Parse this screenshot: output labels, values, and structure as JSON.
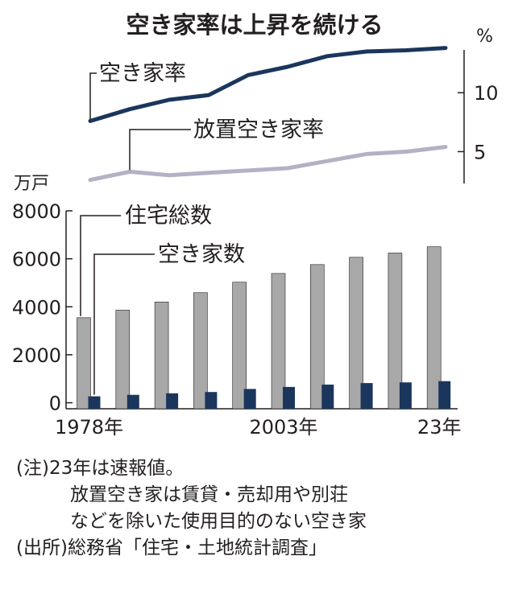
{
  "chart_data": [
    {
      "type": "line",
      "title": "空き家率は上昇を続ける",
      "unit": "%",
      "y_ticks": [
        5,
        10
      ],
      "ylim": [
        2.3,
        15.0
      ],
      "x": [
        1978,
        1983,
        1988,
        1993,
        1998,
        2003,
        2008,
        2013,
        2018,
        2023
      ],
      "series": [
        {
          "name": "空き家率",
          "color": "#1b365d",
          "values": [
            7.6,
            8.6,
            9.4,
            9.8,
            11.5,
            12.2,
            13.1,
            13.5,
            13.6,
            13.8
          ]
        },
        {
          "name": "放置空き家率",
          "color": "#b3b1c4",
          "values": [
            2.6,
            3.3,
            3.0,
            3.2,
            3.4,
            3.6,
            4.2,
            4.8,
            5.0,
            5.4
          ]
        }
      ]
    },
    {
      "type": "bar",
      "unit": "万戸",
      "y_ticks": [
        0,
        2000,
        4000,
        6000,
        8000
      ],
      "ylim": [
        -250,
        8000
      ],
      "x": [
        1978,
        1983,
        1988,
        1993,
        1998,
        2003,
        2008,
        2013,
        2018,
        2023
      ],
      "x_tick_labels": [
        {
          "x": 1978,
          "label": "1978年"
        },
        {
          "x": 2003,
          "label": "2003年"
        },
        {
          "x": 2023,
          "label": "23年"
        }
      ],
      "series": [
        {
          "name": "住宅総数",
          "color": "#a8a8a8",
          "values": [
            3545,
            3861,
            4201,
            4588,
            5025,
            5389,
            5759,
            6063,
            6241,
            6502
          ]
        },
        {
          "name": "空き家数",
          "color": "#1b365d",
          "values": [
            268,
            330,
            394,
            448,
            576,
            659,
            757,
            820,
            849,
            900
          ]
        }
      ]
    }
  ],
  "notes": {
    "note_label": "(注)",
    "note_line1": "23年は速報値。",
    "note_line2": "放置空き家は賃貸・売却用や別荘",
    "note_line3": "などを除いた使用目的のない空き家",
    "source_label": "(出所)",
    "source_text": "総務省「住宅・土地統計調査」"
  }
}
